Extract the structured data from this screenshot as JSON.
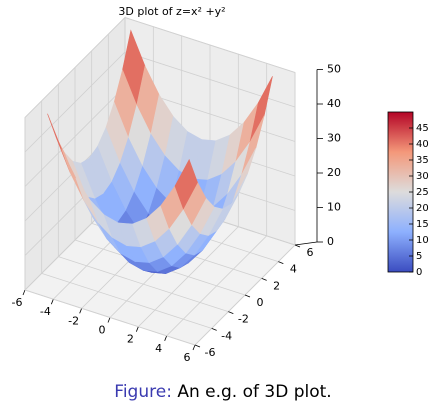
{
  "chart_data": {
    "type": "surface",
    "title": "3D plot of z=x² +y²",
    "x": [
      -5,
      -4,
      -3,
      -2,
      -1,
      0,
      1,
      2,
      3,
      4,
      5
    ],
    "y": [
      -5,
      -4,
      -3,
      -2,
      -1,
      0,
      1,
      2,
      3,
      4,
      5
    ],
    "z": [
      [
        50,
        41,
        34,
        29,
        26,
        25,
        26,
        29,
        34,
        41,
        50
      ],
      [
        41,
        32,
        25,
        20,
        17,
        16,
        17,
        20,
        25,
        32,
        41
      ],
      [
        34,
        25,
        18,
        13,
        10,
        9,
        10,
        13,
        18,
        25,
        34
      ],
      [
        29,
        20,
        13,
        8,
        5,
        4,
        5,
        8,
        13,
        20,
        29
      ],
      [
        26,
        17,
        10,
        5,
        2,
        1,
        2,
        5,
        10,
        17,
        26
      ],
      [
        25,
        16,
        9,
        4,
        1,
        0,
        1,
        4,
        9,
        16,
        25
      ],
      [
        26,
        17,
        10,
        5,
        2,
        1,
        2,
        5,
        10,
        17,
        26
      ],
      [
        29,
        20,
        13,
        8,
        5,
        4,
        5,
        8,
        13,
        20,
        29
      ],
      [
        34,
        25,
        18,
        13,
        10,
        9,
        10,
        13,
        18,
        25,
        34
      ],
      [
        41,
        32,
        25,
        20,
        17,
        16,
        17,
        20,
        25,
        32,
        41
      ],
      [
        50,
        41,
        34,
        29,
        26,
        25,
        26,
        29,
        34,
        41,
        50
      ]
    ],
    "xlim": [
      -6,
      6
    ],
    "xticks": [
      -6,
      -4,
      -2,
      0,
      2,
      4,
      6
    ],
    "ylim": [
      -6,
      6
    ],
    "yticks": [
      -6,
      -4,
      -2,
      0,
      2,
      4,
      6
    ],
    "zlim": [
      0,
      50
    ],
    "zticks": [
      0,
      10,
      20,
      30,
      40,
      50
    ],
    "colormap": "coolwarm",
    "clim": [
      0,
      50
    ],
    "cticks": [
      0,
      5,
      10,
      15,
      20,
      25,
      30,
      35,
      40,
      45
    ],
    "grid": true
  },
  "caption": {
    "label": "Figure:",
    "text": "An e.g. of 3D plot."
  }
}
